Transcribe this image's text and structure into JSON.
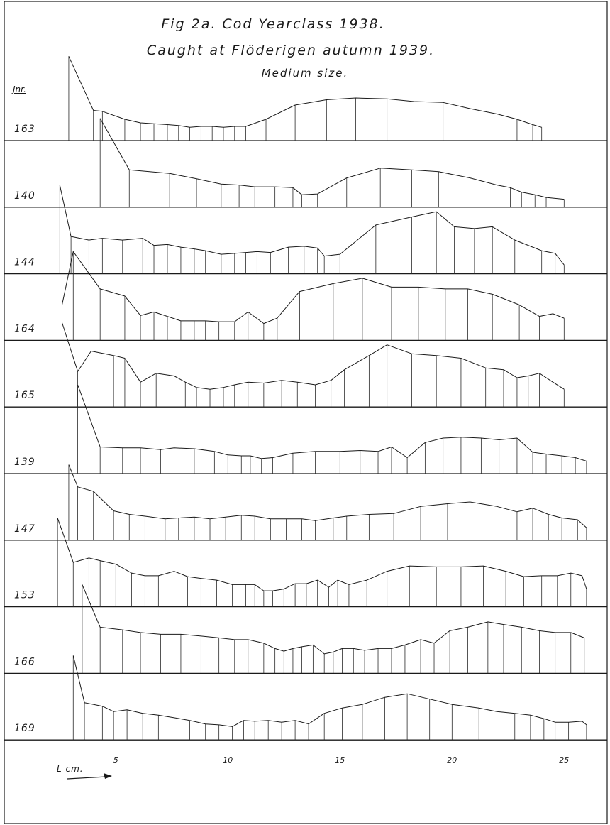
{
  "figure": {
    "title": "Fig 2a.  Cod  Yearclass 1938.",
    "subtitle_1": "Caught at Flöderigen autumn 1939.",
    "subtitle_2": "Medium size.",
    "row_header": "Jnr.",
    "x_unit_label": "L cm."
  },
  "chart_data": {
    "type": "line",
    "title": "Fig 2a.  Cod  Yearclass 1938.",
    "xlabel": "L cm.",
    "ylabel": "",
    "xlim": [
      2.5,
      26.0
    ],
    "x_ticks": [
      5,
      10,
      15,
      20,
      25
    ],
    "x_tick_labels": [
      "5",
      "10",
      "15",
      "20",
      "25"
    ],
    "grid": false,
    "legend": "none",
    "panels": [
      {
        "label": "163",
        "x": [
          2.9,
          4.0,
          4.4,
          5.4,
          6.1,
          6.7,
          7.3,
          7.8,
          8.3,
          8.8,
          9.3,
          9.8,
          10.3,
          10.8,
          11.7,
          13.0,
          14.4,
          15.7,
          17.1,
          18.3,
          19.6,
          20.8,
          22.0,
          22.9,
          23.6,
          24.0
        ],
        "y": [
          0.95,
          0.34,
          0.33,
          0.24,
          0.2,
          0.19,
          0.18,
          0.17,
          0.15,
          0.16,
          0.16,
          0.15,
          0.16,
          0.16,
          0.24,
          0.4,
          0.46,
          0.48,
          0.47,
          0.44,
          0.43,
          0.36,
          0.3,
          0.24,
          0.18,
          0.15
        ]
      },
      {
        "label": "140",
        "x": [
          4.3,
          5.6,
          7.4,
          8.6,
          9.7,
          10.5,
          11.2,
          12.1,
          12.9,
          13.3,
          14.0,
          15.3,
          16.8,
          18.2,
          19.4,
          20.8,
          22.0,
          22.6,
          23.1,
          23.7,
          24.2,
          25.0
        ],
        "y": [
          1.0,
          0.42,
          0.38,
          0.32,
          0.26,
          0.25,
          0.23,
          0.23,
          0.22,
          0.14,
          0.15,
          0.33,
          0.44,
          0.42,
          0.4,
          0.33,
          0.25,
          0.22,
          0.17,
          0.14,
          0.11,
          0.09
        ]
      },
      {
        "label": "144",
        "x": [
          2.5,
          3.0,
          3.8,
          4.4,
          5.3,
          6.2,
          6.7,
          7.3,
          7.9,
          8.5,
          9.0,
          9.7,
          10.3,
          10.8,
          11.3,
          11.9,
          12.7,
          13.4,
          14.0,
          14.3,
          15.0,
          16.6,
          18.2,
          19.3,
          20.1,
          21.0,
          21.8,
          22.8,
          23.3,
          24.0,
          24.6,
          25.0
        ],
        "y": [
          1.0,
          0.42,
          0.38,
          0.4,
          0.38,
          0.4,
          0.32,
          0.33,
          0.3,
          0.28,
          0.26,
          0.22,
          0.23,
          0.24,
          0.25,
          0.24,
          0.3,
          0.31,
          0.29,
          0.2,
          0.22,
          0.55,
          0.64,
          0.7,
          0.53,
          0.51,
          0.53,
          0.38,
          0.33,
          0.26,
          0.23,
          0.1
        ]
      },
      {
        "label": "164",
        "x": [
          2.6,
          3.1,
          4.3,
          5.4,
          6.1,
          6.7,
          7.3,
          7.9,
          8.5,
          9.0,
          9.6,
          10.3,
          10.9,
          11.6,
          12.2,
          13.2,
          14.7,
          16.0,
          17.3,
          18.5,
          19.7,
          20.7,
          21.8,
          23.0,
          23.9,
          24.5,
          25.0
        ],
        "y": [
          0.4,
          1.0,
          0.58,
          0.5,
          0.28,
          0.32,
          0.27,
          0.22,
          0.22,
          0.22,
          0.21,
          0.21,
          0.32,
          0.19,
          0.25,
          0.55,
          0.64,
          0.7,
          0.6,
          0.6,
          0.58,
          0.58,
          0.52,
          0.4,
          0.27,
          0.3,
          0.25
        ]
      },
      {
        "label": "165",
        "x": [
          2.6,
          3.3,
          3.9,
          4.9,
          5.4,
          6.1,
          6.8,
          7.6,
          8.1,
          8.6,
          9.2,
          9.8,
          10.3,
          10.9,
          11.6,
          12.4,
          13.1,
          13.9,
          14.6,
          15.2,
          16.3,
          17.1,
          18.2,
          19.3,
          20.4,
          21.5,
          22.3,
          22.9,
          23.4,
          23.9,
          24.5,
          25.0
        ],
        "y": [
          0.95,
          0.4,
          0.63,
          0.58,
          0.55,
          0.28,
          0.38,
          0.35,
          0.28,
          0.22,
          0.2,
          0.22,
          0.25,
          0.28,
          0.27,
          0.3,
          0.28,
          0.25,
          0.3,
          0.42,
          0.58,
          0.7,
          0.6,
          0.58,
          0.55,
          0.44,
          0.42,
          0.33,
          0.35,
          0.38,
          0.28,
          0.2
        ]
      },
      {
        "label": "139",
        "x": [
          3.3,
          4.3,
          5.3,
          6.1,
          7.0,
          7.6,
          8.5,
          9.4,
          10.0,
          10.6,
          11.0,
          11.5,
          12.0,
          12.9,
          13.9,
          15.0,
          15.9,
          16.7,
          17.3,
          18.0,
          18.8,
          19.6,
          20.4,
          21.3,
          22.1,
          22.9,
          23.6,
          24.2,
          24.9,
          25.5,
          26.0
        ],
        "y": [
          1.0,
          0.3,
          0.29,
          0.29,
          0.27,
          0.29,
          0.28,
          0.25,
          0.21,
          0.2,
          0.2,
          0.17,
          0.18,
          0.23,
          0.25,
          0.25,
          0.26,
          0.25,
          0.3,
          0.18,
          0.35,
          0.4,
          0.41,
          0.4,
          0.38,
          0.4,
          0.24,
          0.22,
          0.2,
          0.18,
          0.14
        ]
      },
      {
        "label": "147",
        "x": [
          2.9,
          3.3,
          4.0,
          4.9,
          5.6,
          6.3,
          7.2,
          7.8,
          8.5,
          9.2,
          9.9,
          10.6,
          11.2,
          11.9,
          12.6,
          13.3,
          13.9,
          14.7,
          15.3,
          16.3,
          17.4,
          18.6,
          19.8,
          20.8,
          22.0,
          22.9,
          23.6,
          24.3,
          24.9,
          25.6,
          26.0
        ],
        "y": [
          0.85,
          0.6,
          0.55,
          0.33,
          0.29,
          0.27,
          0.24,
          0.25,
          0.26,
          0.24,
          0.26,
          0.28,
          0.27,
          0.24,
          0.24,
          0.24,
          0.22,
          0.25,
          0.27,
          0.29,
          0.3,
          0.38,
          0.41,
          0.43,
          0.38,
          0.32,
          0.36,
          0.29,
          0.25,
          0.23,
          0.14
        ]
      },
      {
        "label": "153",
        "x": [
          2.4,
          3.1,
          3.8,
          4.3,
          5.0,
          5.7,
          6.3,
          6.9,
          7.6,
          8.2,
          8.8,
          9.5,
          10.2,
          10.8,
          11.2,
          11.6,
          12.0,
          12.5,
          13.0,
          13.5,
          14.0,
          14.5,
          14.9,
          15.4,
          16.2,
          17.1,
          18.1,
          19.3,
          20.4,
          21.4,
          22.4,
          23.2,
          24.0,
          24.7,
          25.3,
          25.8,
          26.0
        ],
        "y": [
          1.0,
          0.5,
          0.55,
          0.52,
          0.48,
          0.38,
          0.35,
          0.35,
          0.4,
          0.34,
          0.32,
          0.3,
          0.25,
          0.25,
          0.25,
          0.18,
          0.18,
          0.2,
          0.26,
          0.26,
          0.3,
          0.22,
          0.3,
          0.25,
          0.3,
          0.4,
          0.46,
          0.45,
          0.45,
          0.46,
          0.4,
          0.34,
          0.35,
          0.35,
          0.38,
          0.35,
          0.2
        ]
      },
      {
        "label": "166",
        "x": [
          3.5,
          4.3,
          5.3,
          6.1,
          7.0,
          7.9,
          8.8,
          9.6,
          10.3,
          10.9,
          11.6,
          12.1,
          12.5,
          12.9,
          13.3,
          13.8,
          14.3,
          14.7,
          15.1,
          15.6,
          16.1,
          16.7,
          17.3,
          17.9,
          18.6,
          19.2,
          19.9,
          20.7,
          21.6,
          22.3,
          23.1,
          23.9,
          24.6,
          25.3,
          25.9
        ],
        "y": [
          1.0,
          0.52,
          0.49,
          0.46,
          0.44,
          0.44,
          0.42,
          0.4,
          0.38,
          0.38,
          0.34,
          0.28,
          0.25,
          0.28,
          0.3,
          0.32,
          0.22,
          0.24,
          0.28,
          0.28,
          0.26,
          0.28,
          0.28,
          0.32,
          0.38,
          0.34,
          0.48,
          0.52,
          0.58,
          0.55,
          0.52,
          0.48,
          0.46,
          0.46,
          0.4
        ]
      },
      {
        "label": "169",
        "x": [
          3.1,
          3.6,
          4.4,
          4.9,
          5.5,
          6.2,
          6.9,
          7.6,
          8.3,
          9.0,
          9.6,
          10.2,
          10.7,
          11.2,
          11.8,
          12.4,
          13.0,
          13.6,
          14.3,
          15.1,
          16.0,
          17.0,
          18.0,
          19.0,
          20.0,
          21.2,
          22.0,
          22.8,
          23.5,
          24.1,
          24.6,
          25.2,
          25.8,
          26.0
        ],
        "y": [
          0.95,
          0.42,
          0.38,
          0.32,
          0.34,
          0.3,
          0.28,
          0.25,
          0.22,
          0.18,
          0.17,
          0.15,
          0.22,
          0.21,
          0.22,
          0.2,
          0.22,
          0.18,
          0.3,
          0.36,
          0.4,
          0.48,
          0.52,
          0.46,
          0.4,
          0.36,
          0.32,
          0.3,
          0.28,
          0.24,
          0.2,
          0.2,
          0.21,
          0.17
        ]
      }
    ]
  }
}
